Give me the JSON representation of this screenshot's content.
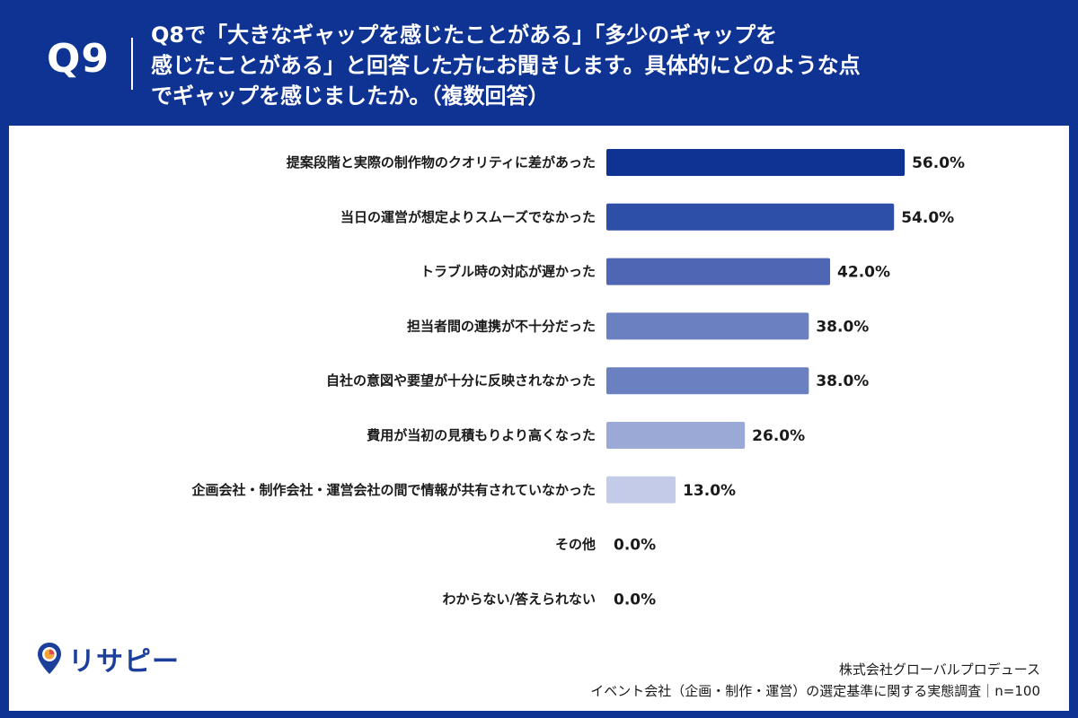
{
  "header": {
    "question_number": "Q9",
    "question_text": "Q8で「大きなギャップを感じたことがある」「多少のギャップを\n感じたことがある」と回答した方にお聞きします。具体的にどのような点\nでギャップを感じましたか。（複数回答）"
  },
  "footer": {
    "logo_text": "リサピー",
    "source_line1": "株式会社グローバルプロデュース",
    "source_line2": "イベント会社（企画・制作・運営）の選定基準に関する実態調査｜n=100"
  },
  "colors": {
    "header_bg": "#0e3393",
    "panel_bg": "#ffffff",
    "bar_colors": [
      "#0e3393",
      "#2e4fa8",
      "#4f66b4",
      "#6a80c0",
      "#6a80c0",
      "#9aa9d6",
      "#c3cbe8",
      "#dfe4f3",
      "#dfe4f3"
    ]
  },
  "chart_data": {
    "type": "bar",
    "orientation": "horizontal",
    "unit": "%",
    "xlim": [
      0,
      100
    ],
    "grid": false,
    "categories": [
      "提案段階と実際の制作物のクオリティに差があった",
      "当日の運営が想定よりスムーズでなかった",
      "トラブル時の対応が遅かった",
      "担当者間の連携が不十分だった",
      "自社の意図や要望が十分に反映されなかった",
      "費用が当初の見積もりより高くなった",
      "企画会社・制作会社・運営会社の間で情報が共有されていなかった",
      "その他",
      "わからない/答えられない"
    ],
    "values": [
      56.0,
      54.0,
      42.0,
      38.0,
      38.0,
      26.0,
      13.0,
      0.0,
      0.0
    ],
    "value_labels": [
      "56.0%",
      "54.0%",
      "42.0%",
      "38.0%",
      "38.0%",
      "26.0%",
      "13.0%",
      "0.0%",
      "0.0%"
    ]
  }
}
